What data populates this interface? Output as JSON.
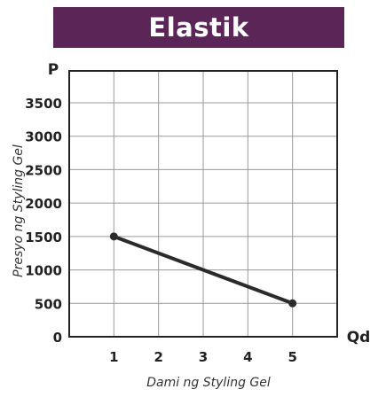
{
  "chart_data": {
    "type": "line",
    "title": "Elastik",
    "xlabel": "Dami ng Styling Gel",
    "ylabel": "Presyo ng Styling Gel",
    "x_axis_name": "Qd",
    "y_axis_name": "P",
    "x_ticks": [
      1,
      2,
      3,
      4,
      5
    ],
    "y_ticks": [
      0,
      500,
      1000,
      1500,
      2000,
      2500,
      3000,
      3500
    ],
    "xlim": [
      0,
      6
    ],
    "ylim": [
      0,
      3500
    ],
    "grid": true,
    "series": [
      {
        "x": [
          1,
          5
        ],
        "y": [
          1500,
          500
        ]
      }
    ]
  },
  "colors": {
    "banner_bg": "#5b2558",
    "line": "#2b2b2b",
    "grid": "#9a9a9a",
    "frame": "#222222"
  }
}
